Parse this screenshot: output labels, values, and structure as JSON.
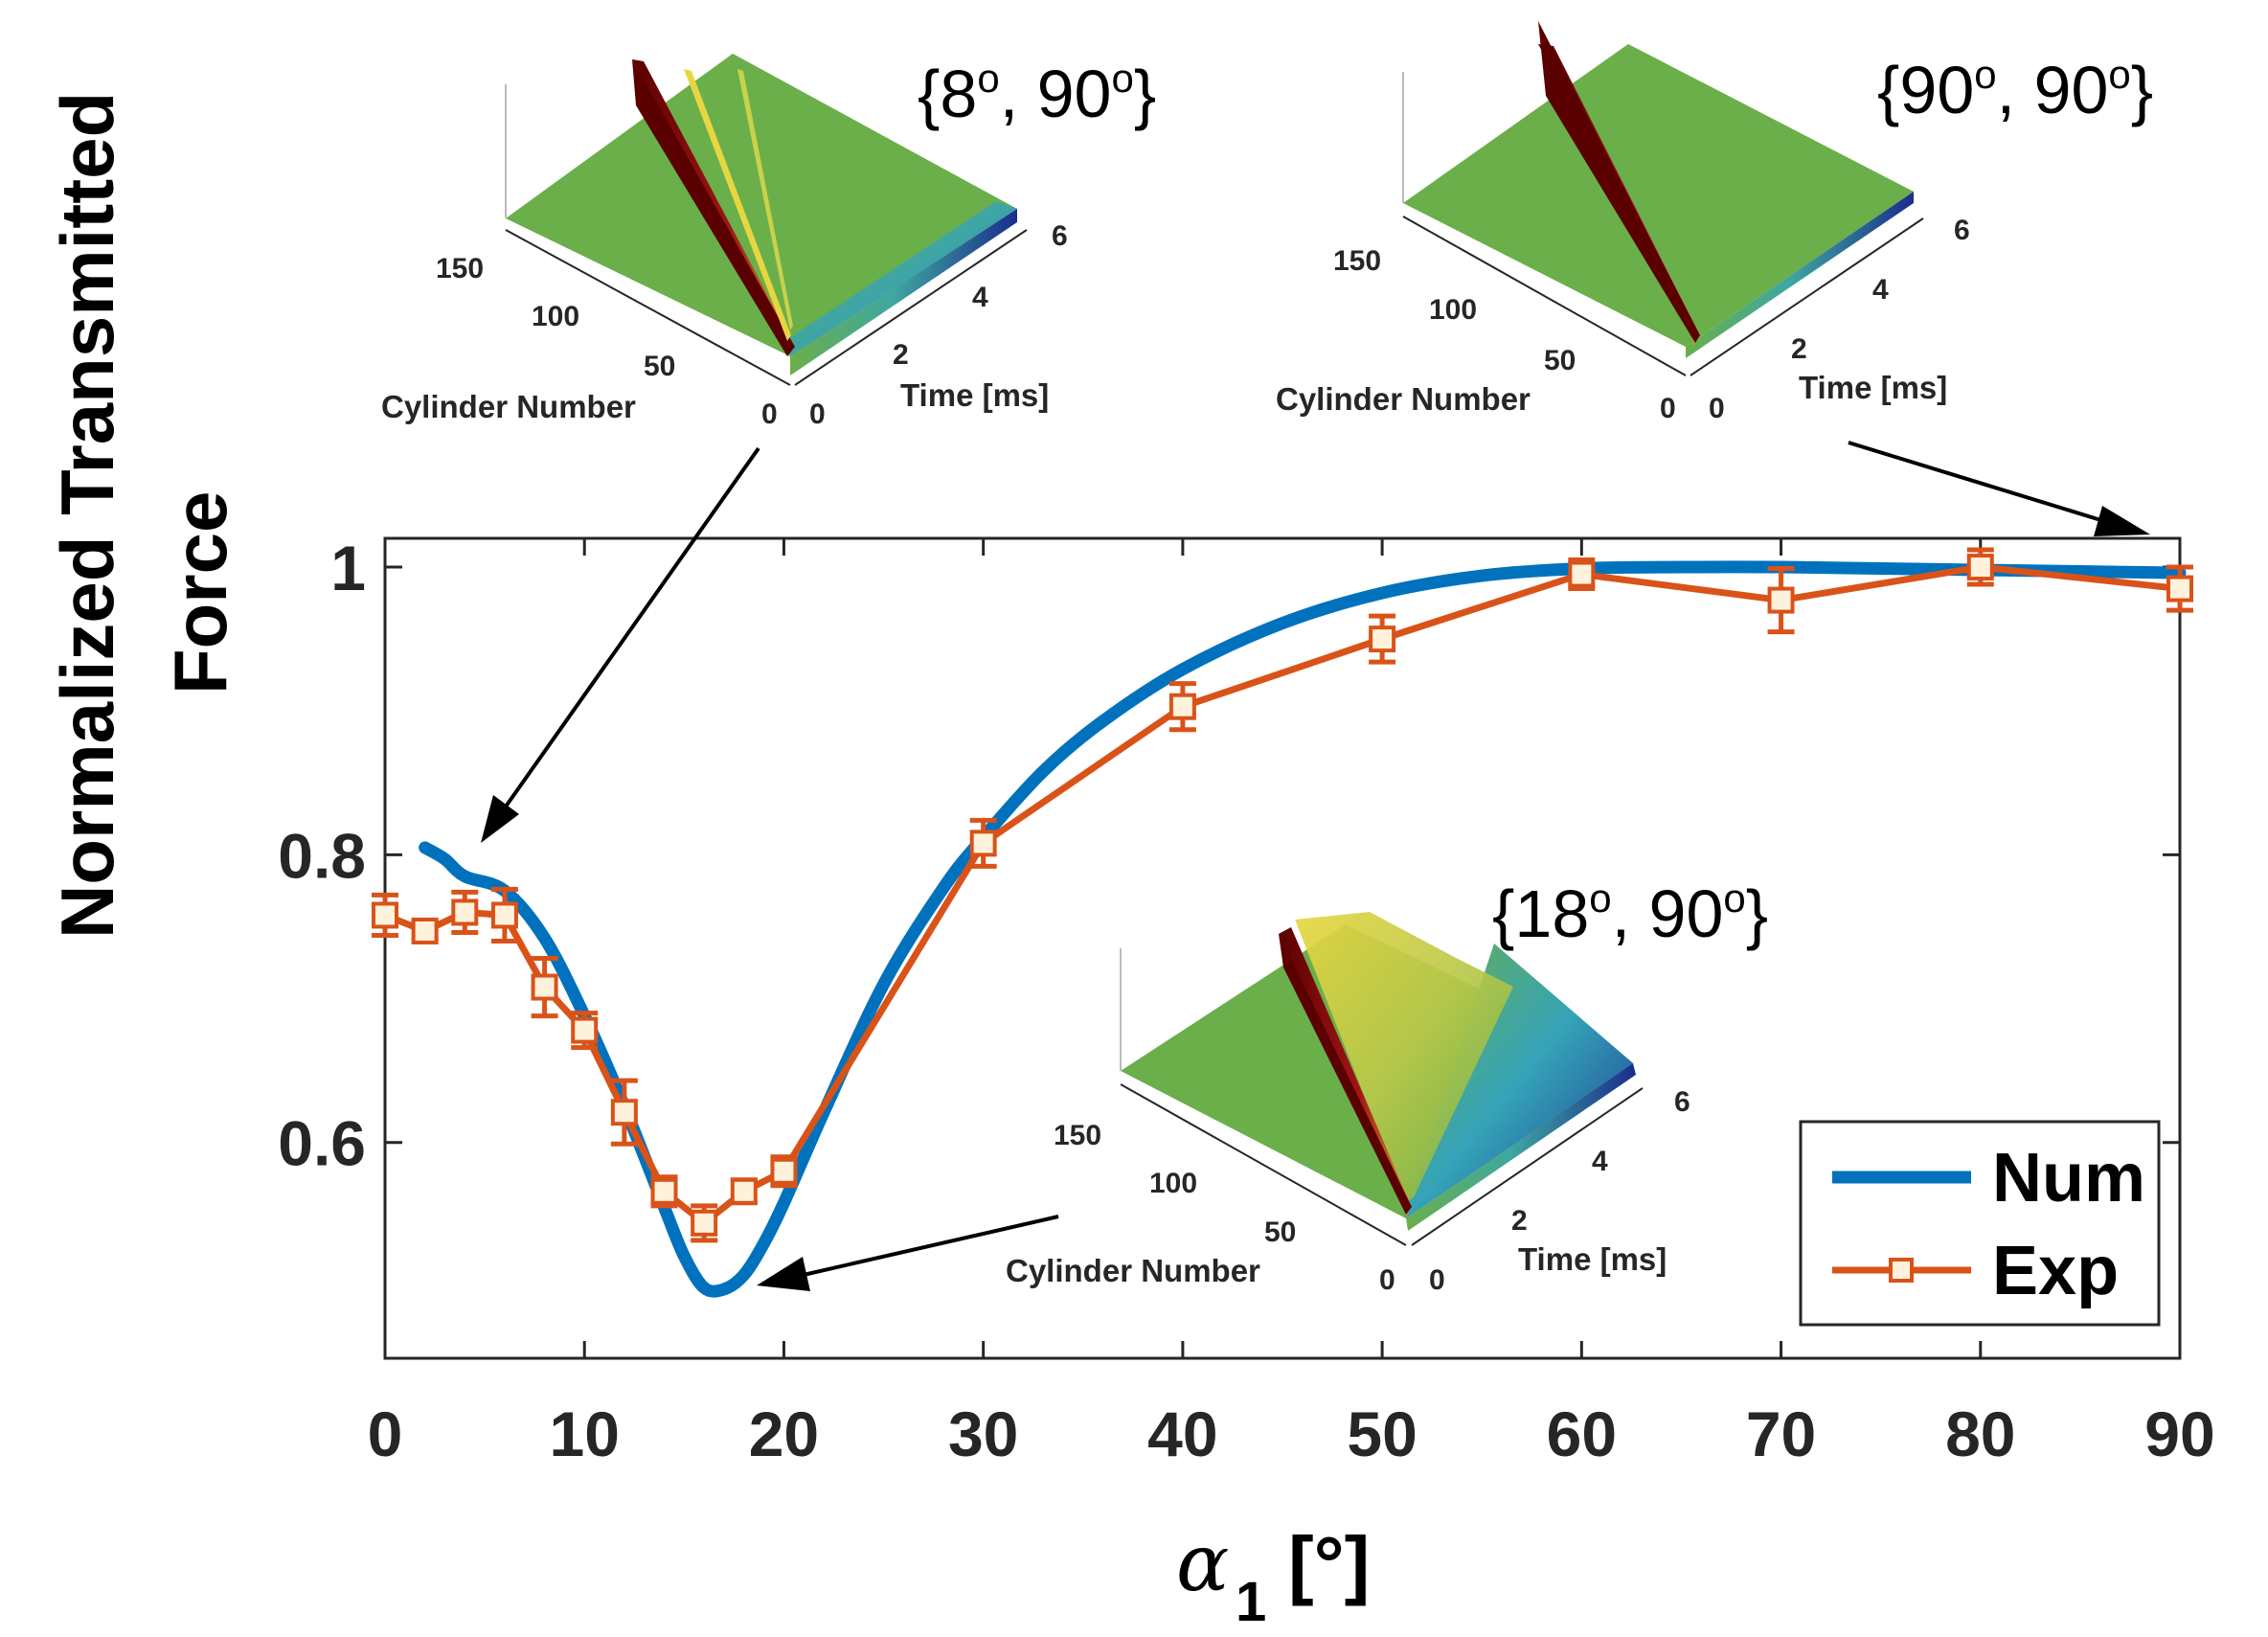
{
  "colors": {
    "num": "#0072BD",
    "exp": "#D95319",
    "marker_fill": "#FFF2DC",
    "axis": "#262626",
    "surface_flat": "#6AAF4A",
    "surface_wave": "#7A0A0A",
    "surface_yellow": "#E8D640",
    "surface_blue": "#1A2E8C"
  },
  "chart_data": {
    "type": "line",
    "xlabel_symbol": "α",
    "xlabel_sub": "1",
    "xlabel_unit": "[°]",
    "ylabel_line1": "Normalized Transmitted",
    "ylabel_line2": "Force",
    "xlim": [
      0,
      90
    ],
    "ylim": [
      0.45,
      1.02
    ],
    "xticks": [
      0,
      10,
      20,
      30,
      40,
      50,
      60,
      70,
      80,
      90
    ],
    "yticks": [
      0.6,
      0.8,
      1
    ],
    "ytick_labels": [
      "0.6",
      "0.8",
      "1"
    ],
    "legend": {
      "placement": "bottom-right",
      "entries": [
        "Num",
        "Exp"
      ]
    },
    "series": [
      {
        "name": "Num",
        "style": "line",
        "x": [
          2,
          3,
          4,
          6,
          8,
          10,
          12,
          14,
          15,
          16,
          17,
          18,
          19,
          20,
          22,
          25,
          28,
          30,
          33,
          36,
          40,
          45,
          50,
          55,
          60,
          65,
          70,
          75,
          80,
          85,
          90
        ],
        "y": [
          0.805,
          0.797,
          0.785,
          0.775,
          0.742,
          0.688,
          0.625,
          0.555,
          0.521,
          0.499,
          0.498,
          0.508,
          0.53,
          0.558,
          0.621,
          0.71,
          0.777,
          0.812,
          0.858,
          0.893,
          0.929,
          0.961,
          0.982,
          0.994,
          0.999,
          1.0,
          1.0,
          0.999,
          0.998,
          0.997,
          0.996
        ]
      },
      {
        "name": "Exp",
        "style": "line-marker",
        "x": [
          0,
          2,
          4,
          6,
          8,
          10,
          12,
          14,
          16,
          18,
          20,
          30,
          40,
          50,
          60,
          70,
          80,
          90
        ],
        "y": [
          0.758,
          0.747,
          0.76,
          0.758,
          0.708,
          0.678,
          0.621,
          0.566,
          0.544,
          0.566,
          0.58,
          0.808,
          0.903,
          0.95,
          0.995,
          0.977,
          1.0,
          0.985
        ],
        "err": [
          0.014,
          0.006,
          0.014,
          0.018,
          0.02,
          0.012,
          0.022,
          0.01,
          0.012,
          0.008,
          0.01,
          0.016,
          0.016,
          0.016,
          0.01,
          0.022,
          0.012,
          0.015
        ]
      }
    ]
  },
  "insets": [
    {
      "title_num1": "8",
      "title_num2": "90",
      "deg": "o",
      "y_ticks": [
        "150",
        "100",
        "50",
        "0"
      ],
      "x_ticks": [
        "0",
        "2",
        "4",
        "6"
      ],
      "y_label": "Cylinder Number",
      "x_label": "Time [ms]"
    },
    {
      "title_num1": "90",
      "title_num2": "90",
      "deg": "o",
      "y_ticks": [
        "150",
        "100",
        "50",
        "0"
      ],
      "x_ticks": [
        "0",
        "2",
        "4",
        "6"
      ],
      "y_label": "Cylinder Number",
      "x_label": "Time [ms]"
    },
    {
      "title_num1": "18",
      "title_num2": "90",
      "deg": "o",
      "y_ticks": [
        "150",
        "100",
        "50",
        "0"
      ],
      "x_ticks": [
        "0",
        "2",
        "4",
        "6"
      ],
      "y_label": "Cylinder Number",
      "x_label": "Time [ms]"
    }
  ]
}
